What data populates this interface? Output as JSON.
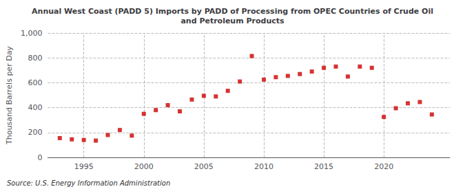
{
  "chart_data": {
    "type": "scatter",
    "title": "Annual West Coast (PADD 5) Imports by PADD of Processing from OPEC Countries of Crude Oil\nand Petroleum Products",
    "ylabel": "Thousand Barrels per Day",
    "source": "Source: U.S. Energy Information Administration",
    "x": [
      1993,
      1994,
      1995,
      1996,
      1997,
      1998,
      1999,
      2000,
      2001,
      2002,
      2003,
      2004,
      2005,
      2006,
      2007,
      2008,
      2009,
      2010,
      2011,
      2012,
      2013,
      2014,
      2015,
      2016,
      2017,
      2018,
      2019,
      2020,
      2021,
      2022,
      2023,
      2024
    ],
    "values": [
      155,
      145,
      140,
      135,
      180,
      220,
      175,
      350,
      380,
      420,
      370,
      465,
      495,
      490,
      535,
      610,
      815,
      625,
      645,
      655,
      670,
      690,
      720,
      730,
      650,
      730,
      720,
      325,
      395,
      435,
      445,
      345
    ],
    "color": "#cc0000",
    "marker": "square",
    "xlim": [
      1992,
      2025.5
    ],
    "xticks": [
      1995,
      2000,
      2005,
      2010,
      2015,
      2020
    ],
    "ylim": [
      0,
      1000
    ],
    "yticks": [
      0,
      200,
      400,
      600,
      800,
      {
        "value": 1000,
        "label": "1,000"
      }
    ],
    "grid": true
  }
}
